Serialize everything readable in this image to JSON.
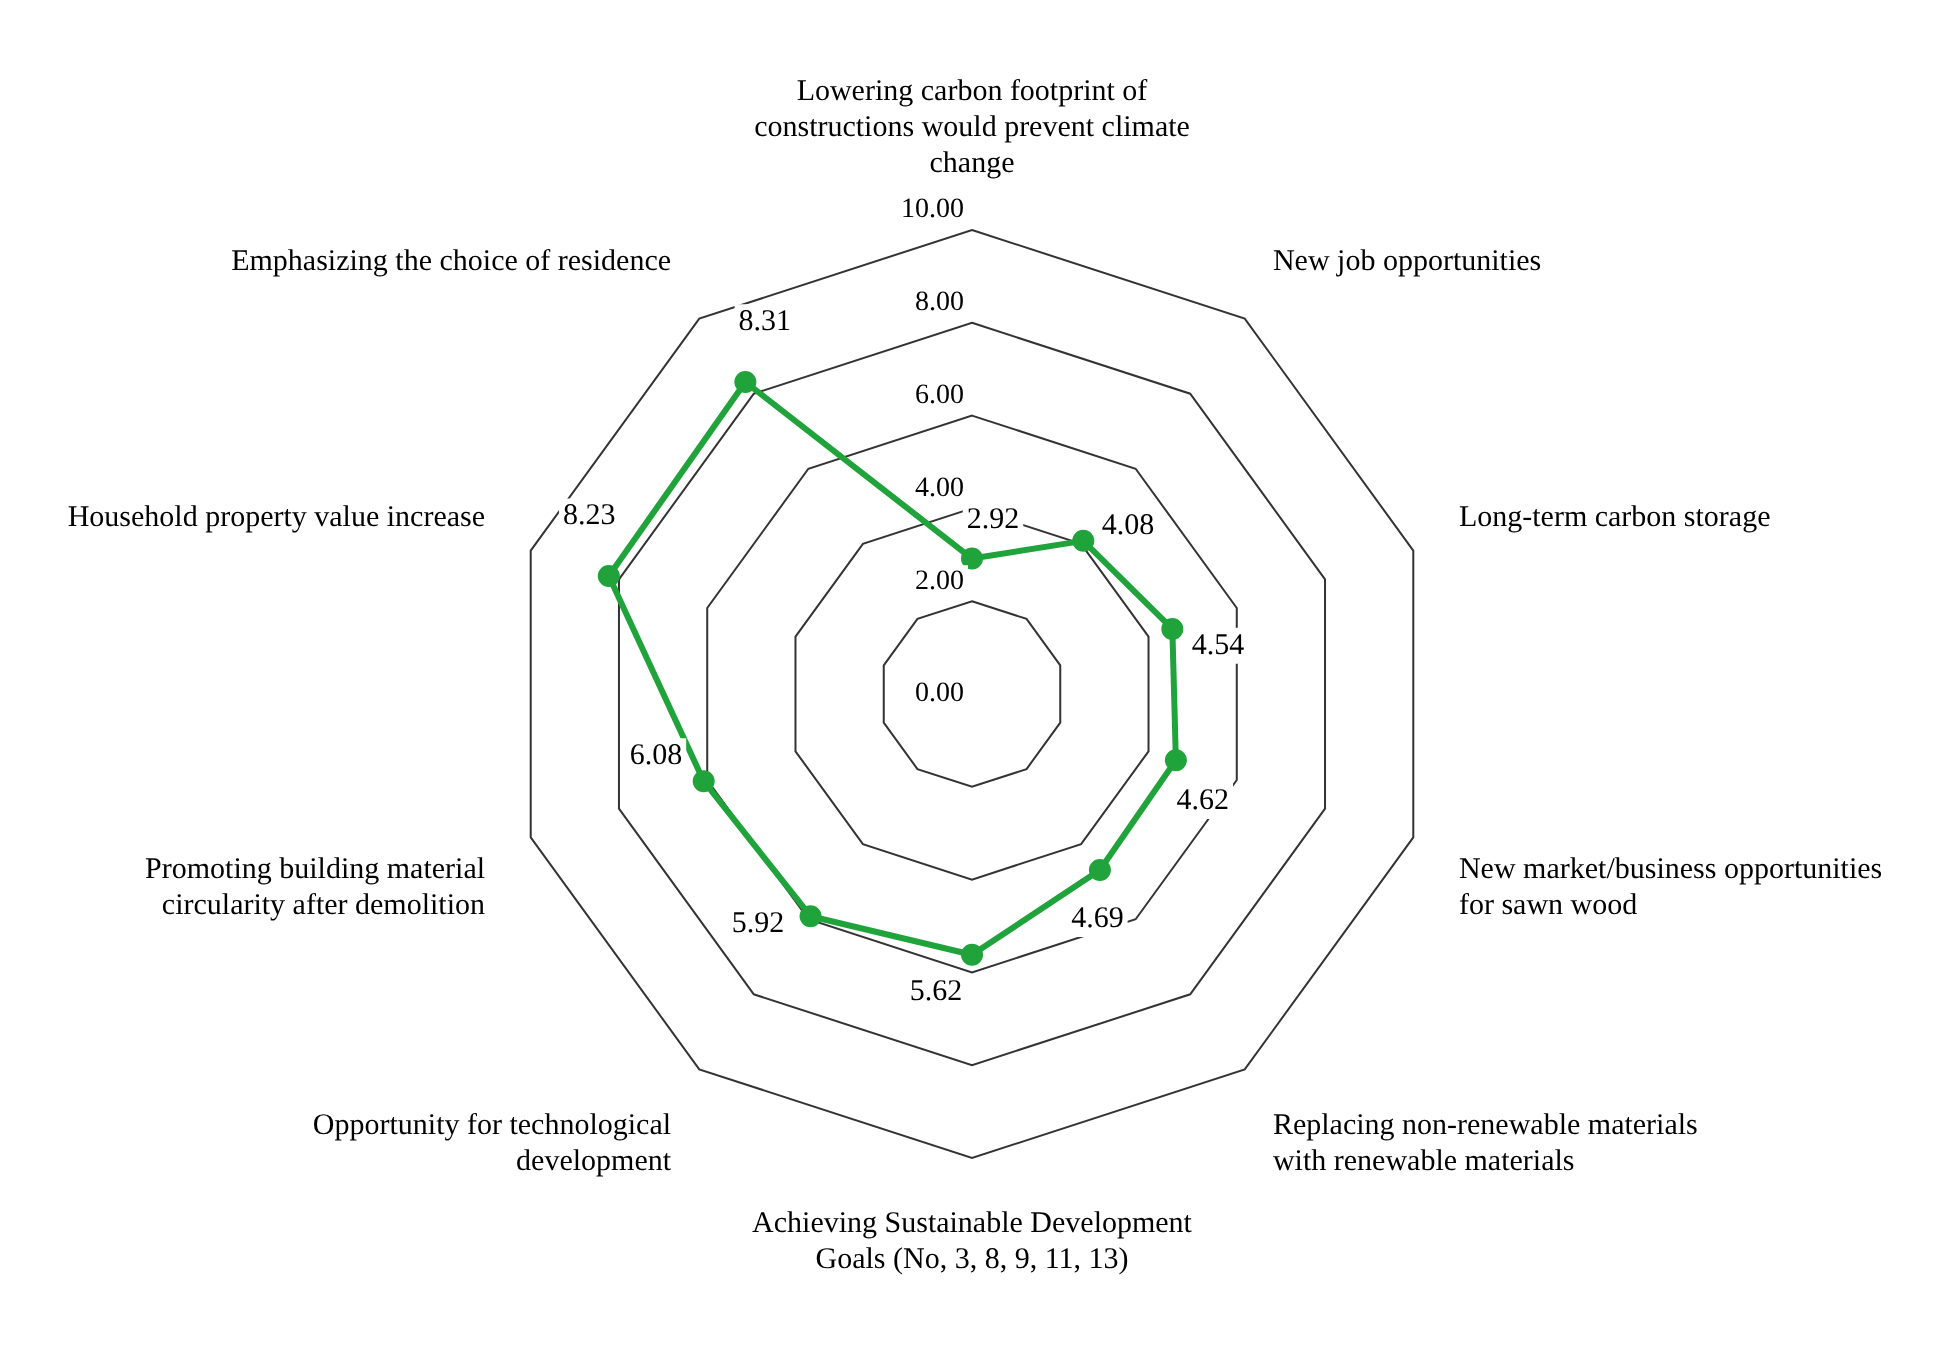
{
  "chart_data": {
    "type": "radar",
    "categories": [
      "Lowering carbon footprint of constructions would prevent climate change",
      "New job opportunities",
      "Long-term carbon storage",
      "New market/business opportunities for sawn wood",
      "Replacing non-renewable materials with renewable materials",
      "Achieving Sustainable Development Goals (No, 3, 8, 9, 11, 13)",
      "Opportunity for technological development",
      "Promoting building material circularity after demolition",
      "Household property value increase",
      "Emphasizing the choice of residence"
    ],
    "series": [
      {
        "color": "#1fa33a",
        "values": [
          2.92,
          4.08,
          4.54,
          4.62,
          4.69,
          5.62,
          5.92,
          6.08,
          8.23,
          8.31
        ]
      }
    ],
    "ylim": [
      0,
      10
    ],
    "yticks": [
      {
        "value": 0,
        "label": "0.00"
      },
      {
        "value": 2,
        "label": "2.00"
      },
      {
        "value": 4,
        "label": "4.00"
      },
      {
        "value": 6,
        "label": "6.00"
      },
      {
        "value": 8,
        "label": "8.00"
      },
      {
        "value": 10,
        "label": "10.00"
      }
    ],
    "data_labels": true,
    "legend": false,
    "grid": true,
    "marker": "circle"
  }
}
